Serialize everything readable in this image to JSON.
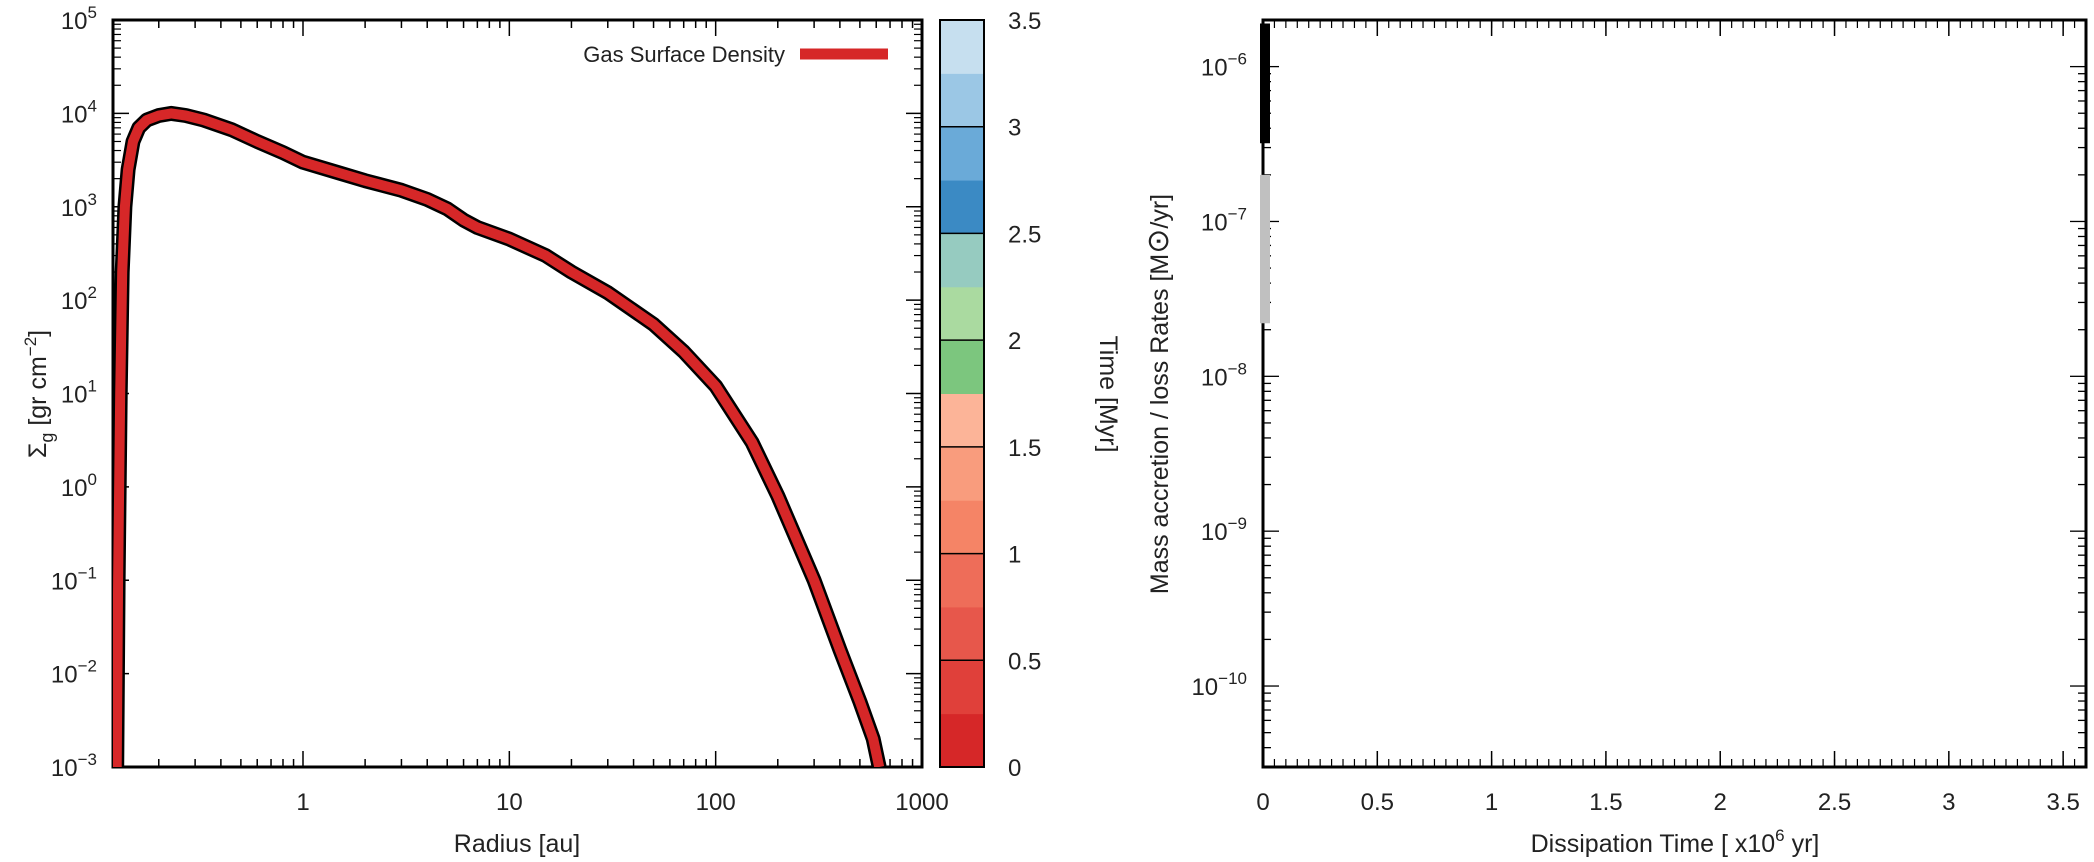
{
  "chart_data": [
    {
      "type": "line",
      "xlabel": "Radius [au]",
      "ylabel": "Σg [gr cm−2]",
      "xscale": "log",
      "yscale": "log",
      "xlim": [
        0.12,
        1000
      ],
      "ylim": [
        0.001,
        100000
      ],
      "x_ticks": [
        "1",
        "10",
        "100",
        "1000"
      ],
      "y_ticks": [
        {
          "base": "10",
          "exp": "−3"
        },
        {
          "base": "10",
          "exp": "−2"
        },
        {
          "base": "10",
          "exp": "−1"
        },
        {
          "base": "10",
          "exp": "0"
        },
        {
          "base": "10",
          "exp": "1"
        },
        {
          "base": "10",
          "exp": "2"
        },
        {
          "base": "10",
          "exp": "3"
        },
        {
          "base": "10",
          "exp": "4"
        },
        {
          "base": "10",
          "exp": "5"
        }
      ],
      "legend": {
        "position": "top-right",
        "label": "Gas Surface Density",
        "color": "#d62728"
      },
      "series": [
        {
          "name": "Gas Surface Density",
          "color": "#d62728",
          "x": [
            0.125,
            0.127,
            0.13,
            0.133,
            0.137,
            0.142,
            0.15,
            0.16,
            0.175,
            0.2,
            0.23,
            0.27,
            0.33,
            0.45,
            0.6,
            0.8,
            1.0,
            1.5,
            2.0,
            3.0,
            4.0,
            5.0,
            6.0,
            7.0,
            10,
            15,
            20,
            30,
            50,
            70,
            100,
            150,
            200,
            300,
            400,
            500,
            580,
            620
          ],
          "y": [
            0.001,
            0.1,
            10,
            200,
            1000,
            2500,
            5000,
            7000,
            8500,
            9500,
            10000,
            9500,
            8500,
            6700,
            5000,
            3800,
            3000,
            2300,
            1900,
            1500,
            1200,
            950,
            720,
            600,
            450,
            300,
            200,
            120,
            55,
            28,
            12,
            3,
            0.8,
            0.1,
            0.018,
            0.005,
            0.002,
            0.001
          ]
        }
      ],
      "colorbar": {
        "label": "Time [Myr]",
        "range": [
          0,
          3.5
        ],
        "ticks": [
          "0",
          "0.5",
          "1",
          "1.5",
          "2",
          "2.5",
          "3",
          "3.5"
        ],
        "colors": [
          "#d62728",
          "#e0403a",
          "#e7574b",
          "#ee6d59",
          "#f58466",
          "#f99c7d",
          "#fcb498",
          "#7cc67e",
          "#aadaa0",
          "#96cbc0",
          "#3b8ac4",
          "#6aaad8",
          "#9bc7e5",
          "#c6dfef"
        ]
      }
    },
    {
      "type": "line",
      "xlabel": "Dissipation Time [ x10",
      "xlabel_exp": "6",
      "xlabel_tail": " yr]",
      "ylabel": "Mass accretion / loss Rates [M",
      "ylabel_sun": "⊙",
      "ylabel_tail": "/yr]",
      "yscale": "log",
      "xlim": [
        0,
        3.6
      ],
      "ylim": [
        3e-11,
        2e-06
      ],
      "x_ticks": [
        "0",
        "0.5",
        "1",
        "1.5",
        "2",
        "2.5",
        "3",
        "3.5"
      ],
      "y_ticks": [
        {
          "base": "10",
          "exp": "−10"
        },
        {
          "base": "10",
          "exp": "−9"
        },
        {
          "base": "10",
          "exp": "−8"
        },
        {
          "base": "10",
          "exp": "−7"
        },
        {
          "base": "10",
          "exp": "−6"
        }
      ],
      "series": [
        {
          "color": "#000000",
          "x": [
            0.0,
            0.0
          ],
          "y": [
            3.2e-07,
            1.9e-06
          ]
        },
        {
          "color": "#c0c0c0",
          "x": [
            0.0,
            0.0
          ],
          "y": [
            2.2e-08,
            2e-07
          ]
        }
      ]
    }
  ]
}
